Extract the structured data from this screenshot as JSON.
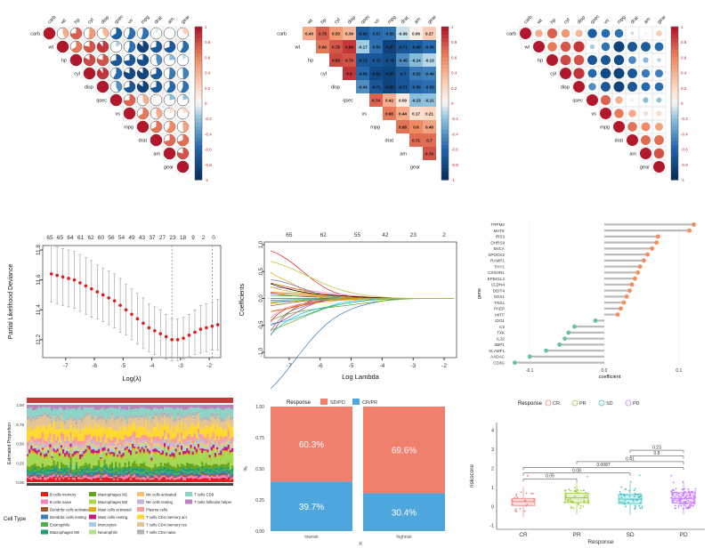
{
  "colors": {
    "red": "#b2182b",
    "orange": "#ef8a62",
    "lightorange": "#fddbc7",
    "white": "#f7f7f7",
    "lightblue": "#d1e5f0",
    "blue": "#2166ac",
    "darkblue": "#053061",
    "dots": "#e31a1c",
    "lollipop_pos": "#f28e5c",
    "lollipop_neg": "#66c2a5",
    "sdpd": "#f07f6d",
    "crpr": "#4ea6dc",
    "box_cr": "#f08080",
    "box_pr": "#9acd32",
    "box_sd": "#40c4c4",
    "box_pd": "#c77cff"
  },
  "corr": {
    "vars": [
      "carb",
      "wt",
      "hp",
      "cyl",
      "disp",
      "qsec",
      "vs",
      "mpg",
      "drat",
      "am",
      "gear"
    ],
    "matrix": [
      [
        1,
        0.43,
        0.75,
        0.53,
        0.39,
        -0.66,
        -0.57,
        -0.55,
        -0.09,
        0.06,
        0.27
      ],
      [
        0.43,
        1,
        0.66,
        0.78,
        0.89,
        -0.17,
        -0.55,
        -0.87,
        -0.71,
        -0.69,
        -0.58
      ],
      [
        0.75,
        0.66,
        1,
        0.83,
        0.79,
        -0.71,
        -0.72,
        -0.78,
        -0.45,
        -0.24,
        -0.13
      ],
      [
        0.53,
        0.78,
        0.83,
        1,
        0.9,
        -0.59,
        -0.81,
        -0.85,
        -0.7,
        -0.52,
        -0.49
      ],
      [
        0.39,
        0.89,
        0.79,
        0.9,
        1,
        -0.43,
        -0.71,
        -0.85,
        -0.71,
        -0.59,
        -0.56
      ],
      [
        -0.66,
        -0.17,
        -0.71,
        -0.59,
        -0.43,
        1,
        0.74,
        0.42,
        0.09,
        -0.23,
        -0.21
      ],
      [
        -0.57,
        -0.55,
        -0.72,
        -0.81,
        -0.71,
        0.74,
        1,
        0.66,
        0.44,
        0.17,
        0.21
      ],
      [
        -0.55,
        -0.87,
        -0.78,
        -0.85,
        -0.85,
        0.42,
        0.66,
        1,
        0.68,
        0.6,
        0.48
      ],
      [
        -0.09,
        -0.71,
        -0.45,
        -0.7,
        -0.71,
        0.09,
        0.44,
        0.68,
        1,
        0.71,
        0.7
      ],
      [
        0.06,
        -0.69,
        -0.24,
        -0.52,
        -0.59,
        -0.23,
        0.17,
        0.6,
        0.71,
        1,
        0.79
      ],
      [
        0.27,
        -0.58,
        -0.13,
        -0.49,
        -0.56,
        -0.21,
        0.21,
        0.48,
        0.7,
        0.79,
        1
      ]
    ],
    "legend_ticks": [
      "1",
      "0.8",
      "0.6",
      "0.4",
      "0.2",
      "0",
      "-0.2",
      "-0.4",
      "-0.6",
      "-0.8",
      "-1"
    ]
  },
  "chart_data": [
    {
      "type": "heatmap",
      "title": "Correlation matrix (pie glyphs)",
      "style": "pie",
      "source": "corr.matrix"
    },
    {
      "type": "heatmap",
      "title": "Correlation matrix (numbers)",
      "style": "number",
      "source": "corr.matrix"
    },
    {
      "type": "heatmap",
      "title": "Correlation matrix (circles)",
      "style": "circle",
      "source": "corr.matrix"
    },
    {
      "type": "line",
      "title": "",
      "xlabel": "Log(λ)",
      "ylabel": "Partial Likelihood Deviance",
      "xlim": [
        -7.8,
        -1.6
      ],
      "ylim": [
        11.08,
        11.83
      ],
      "xticks": [
        "-7",
        "-6",
        "-5",
        "-4",
        "-3",
        "-2"
      ],
      "yticks": [
        "11.2",
        "11.4",
        "11.6",
        "11.8"
      ],
      "top_ticks": [
        "65",
        "65",
        "64",
        "61",
        "62",
        "60",
        "56",
        "54",
        "49",
        "43",
        "37",
        "27",
        "23",
        "18",
        "9",
        "2",
        "0"
      ],
      "vlines": [
        -3.3,
        -1.9
      ],
      "x": [
        -7.5,
        -7.3,
        -7.1,
        -6.9,
        -6.7,
        -6.5,
        -6.3,
        -6.1,
        -5.9,
        -5.7,
        -5.5,
        -5.3,
        -5.1,
        -4.9,
        -4.7,
        -4.5,
        -4.3,
        -4.1,
        -3.9,
        -3.7,
        -3.5,
        -3.3,
        -3.1,
        -2.9,
        -2.7,
        -2.5,
        -2.3,
        -2.1,
        -1.9,
        -1.7
      ],
      "y": [
        11.64,
        11.63,
        11.62,
        11.61,
        11.6,
        11.58,
        11.56,
        11.54,
        11.52,
        11.5,
        11.48,
        11.46,
        11.43,
        11.4,
        11.37,
        11.34,
        11.31,
        11.28,
        11.26,
        11.24,
        11.22,
        11.2,
        11.2,
        11.21,
        11.23,
        11.25,
        11.27,
        11.28,
        11.29,
        11.3
      ],
      "err": [
        0.19,
        0.19,
        0.19,
        0.19,
        0.19,
        0.19,
        0.19,
        0.19,
        0.18,
        0.18,
        0.18,
        0.18,
        0.18,
        0.17,
        0.17,
        0.17,
        0.17,
        0.16,
        0.16,
        0.16,
        0.15,
        0.14,
        0.14,
        0.14,
        0.14,
        0.15,
        0.16,
        0.16,
        0.16,
        0.17
      ]
    },
    {
      "type": "line",
      "title": "",
      "xlabel": "Log Lambda",
      "ylabel": "Coefficients",
      "xlim": [
        -7.8,
        -1.6
      ],
      "ylim": [
        -1.1,
        1.05
      ],
      "xticks": [
        "-7",
        "-6",
        "-5",
        "-4",
        "-3",
        "-2"
      ],
      "yticks": [
        "-1.0",
        "-0.5",
        "0.0",
        "0.5",
        "1.0"
      ],
      "top_ticks": [
        "65",
        "62",
        "55",
        "42",
        "23",
        "2"
      ],
      "series_count": 30
    },
    {
      "type": "bar",
      "title": "",
      "xlabel": "coefficient",
      "ylabel": "gene",
      "orientation": "horizontal",
      "style": "lollipop",
      "xlim": [
        -0.13,
        0.13
      ],
      "xticks": [
        "-0.1",
        "0.0",
        "0.1"
      ],
      "categories": [
        "TRPM2",
        "MATK",
        "IRS3",
        "DHRS9",
        "SNCA",
        "SPOCK2",
        "RAMP1",
        "THY1",
        "CXSOR1",
        "EPB41L2",
        "CLDN4",
        "DDIT4",
        "SOX1",
        "TNS1",
        "PAEP",
        "MITF",
        "IDO1",
        "C2",
        "TXK",
        "IL32",
        "ZBP1",
        "SLAMF1",
        "AADAC",
        "CD3G"
      ],
      "values": [
        0.12,
        0.114,
        0.072,
        0.07,
        0.064,
        0.058,
        0.053,
        0.048,
        0.045,
        0.041,
        0.037,
        0.034,
        0.03,
        0.026,
        0.022,
        0.018,
        -0.012,
        -0.04,
        -0.048,
        -0.053,
        -0.06,
        -0.078,
        -0.1,
        -0.12
      ]
    },
    {
      "type": "bar",
      "title": "",
      "ylabel": "Estimated Proportion",
      "stacked": true,
      "ylim": [
        0,
        1
      ],
      "yticks": [
        "1.00",
        "0.75",
        "0.50",
        "0.25",
        "0.00"
      ],
      "legend_title": "Cell Type",
      "series": [
        {
          "name": "B cells memory",
          "color": "#e41a1c"
        },
        {
          "name": "B cells naive",
          "color": "#f781bf"
        },
        {
          "name": "Dendritic cells activated",
          "color": "#a65628"
        },
        {
          "name": "Dendritic cells resting",
          "color": "#377eb8"
        },
        {
          "name": "Eosinophils",
          "color": "#4daf4a"
        },
        {
          "name": "Macrophages M0",
          "color": "#1b9e77"
        },
        {
          "name": "Macrophages M1",
          "color": "#66a61e"
        },
        {
          "name": "Macrophages M2",
          "color": "#a6d854"
        },
        {
          "name": "Mast cells activated",
          "color": "#e6ab02"
        },
        {
          "name": "Mast cells resting",
          "color": "#c51b7d"
        },
        {
          "name": "Monocytes",
          "color": "#a6cee3"
        },
        {
          "name": "Neutrophils",
          "color": "#b2df8a"
        },
        {
          "name": "NK cells activated",
          "color": "#fdbf6f"
        },
        {
          "name": "NK cells resting",
          "color": "#cab2d6"
        },
        {
          "name": "Plasma cells",
          "color": "#fb9a99"
        },
        {
          "name": "T cells CD4 memory act",
          "color": "#ffd92f"
        },
        {
          "name": "T cells CD4 memory res",
          "color": "#e5c494"
        },
        {
          "name": "T cells CD4 naive",
          "color": "#b3b3b3"
        },
        {
          "name": "T cells CD8",
          "color": "#8dd3c7"
        },
        {
          "name": "T cells follicular helper",
          "color": "#bc80bd"
        }
      ]
    },
    {
      "type": "bar",
      "title": "",
      "stacked": true,
      "legend_title": "Response",
      "xlabel": "ri",
      "ylabel": "%",
      "categories": [
        "lowrisk",
        "highrisk"
      ],
      "series": [
        {
          "name": "SD/PD",
          "values": [
            60.3,
            69.6
          ]
        },
        {
          "name": "CR/PR",
          "values": [
            39.7,
            30.4
          ]
        }
      ],
      "yticks": [
        "1.00",
        "0.75",
        "0.50",
        "0.25",
        "0.00"
      ]
    },
    {
      "type": "scatter",
      "title": "",
      "style": "boxplot+jitter",
      "legend_title": "Response",
      "xlabel": "Response",
      "ylabel": "riskscore",
      "categories": [
        "CR",
        "PR",
        "SD",
        "PD"
      ],
      "ylim": [
        -1.2,
        4.4
      ],
      "yticks": [
        "-1",
        "0",
        "1",
        "2",
        "3",
        "4"
      ],
      "medians": [
        0.25,
        0.45,
        0.38,
        0.42
      ],
      "q1": [
        0.05,
        0.2,
        0.15,
        0.18
      ],
      "q3": [
        0.42,
        0.7,
        0.62,
        0.72
      ],
      "pvalues": [
        {
          "pair": [
            "CR",
            "PR"
          ],
          "p": "0.05"
        },
        {
          "pair": [
            "CR",
            "SD"
          ],
          "p": "0.08"
        },
        {
          "pair": [
            "CR",
            "PD"
          ],
          "p": "0.0087"
        },
        {
          "pair": [
            "PR",
            "PD"
          ],
          "p": "0.41"
        },
        {
          "pair": [
            "SD",
            "PD"
          ],
          "p": "0.8"
        },
        {
          "pair": [
            "SD",
            "PD"
          ],
          "p": "0.23"
        }
      ]
    }
  ]
}
